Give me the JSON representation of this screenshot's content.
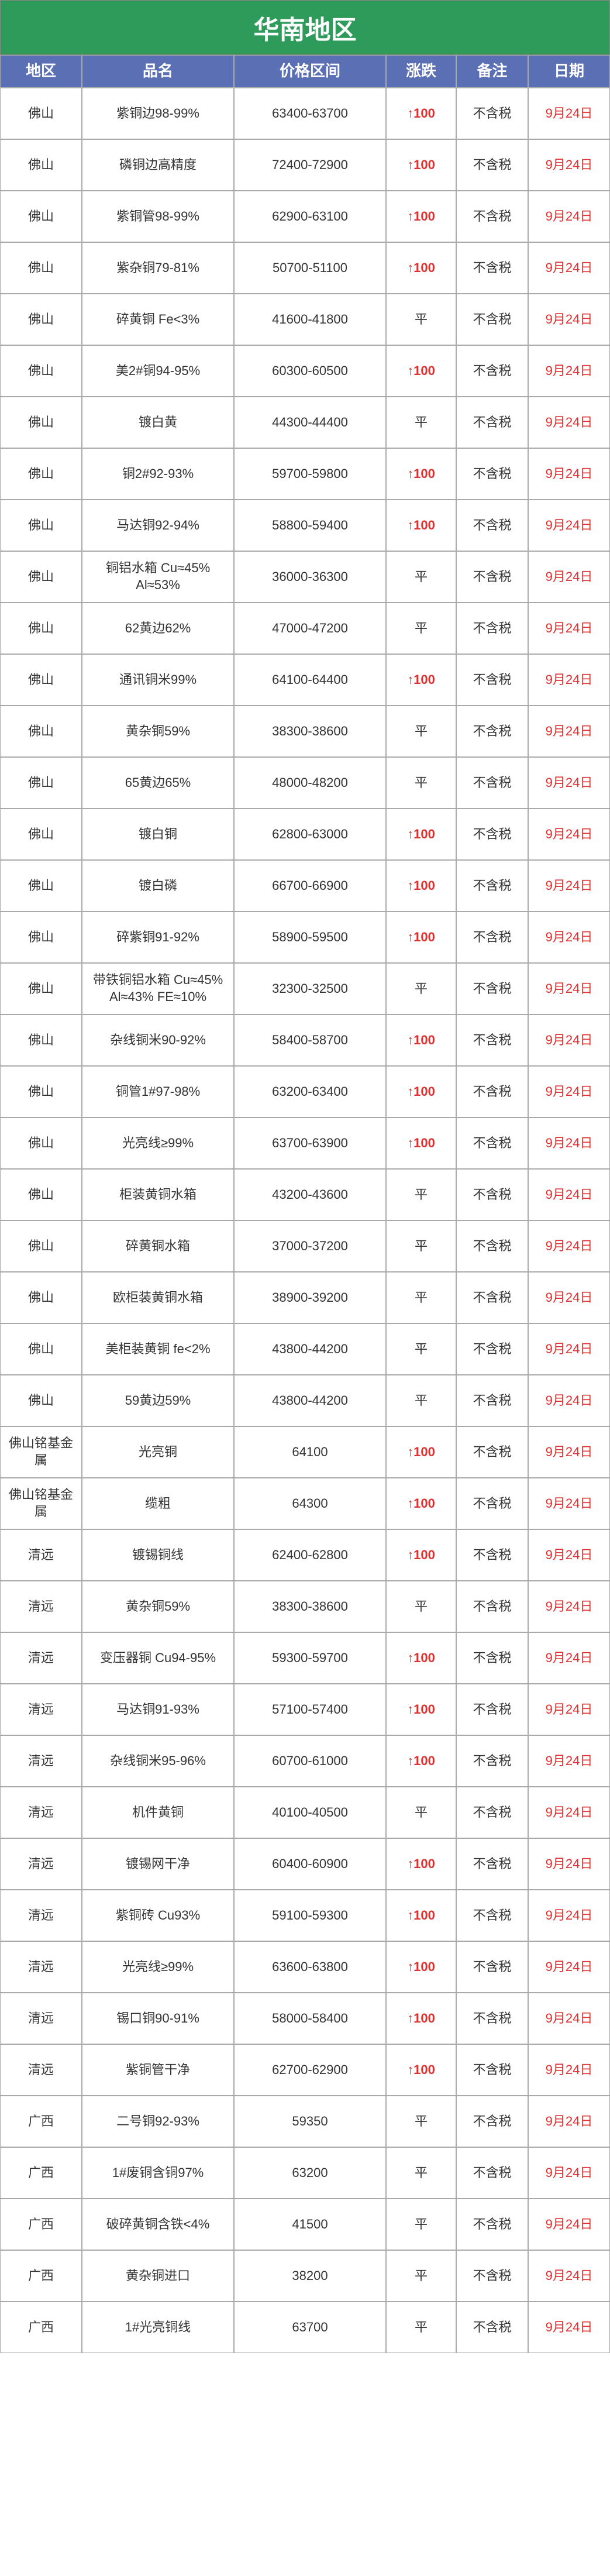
{
  "title": "华南地区",
  "columns": [
    "地区",
    "品名",
    "价格区间",
    "涨跌",
    "备注",
    "日期"
  ],
  "colors": {
    "title_bg": "#2e9b5a",
    "header_bg": "#5b6fb5",
    "text_white": "#ffffff",
    "border": "#aaaaaa",
    "red": "#e03030",
    "normal": "#333333"
  },
  "rows": [
    {
      "region": "佛山",
      "product": "紫铜边98-99%",
      "price": "63400-63700",
      "change": "↑100",
      "change_type": "up",
      "note": "不含税",
      "date": "9月24日"
    },
    {
      "region": "佛山",
      "product": "磷铜边高精度",
      "price": "72400-72900",
      "change": "↑100",
      "change_type": "up",
      "note": "不含税",
      "date": "9月24日"
    },
    {
      "region": "佛山",
      "product": "紫铜管98-99%",
      "price": "62900-63100",
      "change": "↑100",
      "change_type": "up",
      "note": "不含税",
      "date": "9月24日"
    },
    {
      "region": "佛山",
      "product": "紫杂铜79-81%",
      "price": "50700-51100",
      "change": "↑100",
      "change_type": "up",
      "note": "不含税",
      "date": "9月24日"
    },
    {
      "region": "佛山",
      "product": "碎黄铜 Fe<3%",
      "price": "41600-41800",
      "change": "平",
      "change_type": "flat",
      "note": "不含税",
      "date": "9月24日"
    },
    {
      "region": "佛山",
      "product": "美2#铜94-95%",
      "price": "60300-60500",
      "change": "↑100",
      "change_type": "up",
      "note": "不含税",
      "date": "9月24日"
    },
    {
      "region": "佛山",
      "product": "镀白黄",
      "price": "44300-44400",
      "change": "平",
      "change_type": "flat",
      "note": "不含税",
      "date": "9月24日"
    },
    {
      "region": "佛山",
      "product": "铜2#92-93%",
      "price": "59700-59800",
      "change": "↑100",
      "change_type": "up",
      "note": "不含税",
      "date": "9月24日"
    },
    {
      "region": "佛山",
      "product": "马达铜92-94%",
      "price": "58800-59400",
      "change": "↑100",
      "change_type": "up",
      "note": "不含税",
      "date": "9月24日"
    },
    {
      "region": "佛山",
      "product": "铜铝水箱 Cu≈45% Al≈53%",
      "price": "36000-36300",
      "change": "平",
      "change_type": "flat",
      "note": "不含税",
      "date": "9月24日"
    },
    {
      "region": "佛山",
      "product": "62黄边62%",
      "price": "47000-47200",
      "change": "平",
      "change_type": "flat",
      "note": "不含税",
      "date": "9月24日"
    },
    {
      "region": "佛山",
      "product": "通讯铜米99%",
      "price": "64100-64400",
      "change": "↑100",
      "change_type": "up",
      "note": "不含税",
      "date": "9月24日"
    },
    {
      "region": "佛山",
      "product": "黄杂铜59%",
      "price": "38300-38600",
      "change": "平",
      "change_type": "flat",
      "note": "不含税",
      "date": "9月24日"
    },
    {
      "region": "佛山",
      "product": "65黄边65%",
      "price": "48000-48200",
      "change": "平",
      "change_type": "flat",
      "note": "不含税",
      "date": "9月24日"
    },
    {
      "region": "佛山",
      "product": "镀白铜",
      "price": "62800-63000",
      "change": "↑100",
      "change_type": "up",
      "note": "不含税",
      "date": "9月24日"
    },
    {
      "region": "佛山",
      "product": "镀白磷",
      "price": "66700-66900",
      "change": "↑100",
      "change_type": "up",
      "note": "不含税",
      "date": "9月24日"
    },
    {
      "region": "佛山",
      "product": "碎紫铜91-92%",
      "price": "58900-59500",
      "change": "↑100",
      "change_type": "up",
      "note": "不含税",
      "date": "9月24日"
    },
    {
      "region": "佛山",
      "product": "带铁铜铝水箱 Cu≈45% Al≈43% FE≈10%",
      "price": "32300-32500",
      "change": "平",
      "change_type": "flat",
      "note": "不含税",
      "date": "9月24日"
    },
    {
      "region": "佛山",
      "product": "杂线铜米90-92%",
      "price": "58400-58700",
      "change": "↑100",
      "change_type": "up",
      "note": "不含税",
      "date": "9月24日"
    },
    {
      "region": "佛山",
      "product": "铜管1#97-98%",
      "price": "63200-63400",
      "change": "↑100",
      "change_type": "up",
      "note": "不含税",
      "date": "9月24日"
    },
    {
      "region": "佛山",
      "product": "光亮线≥99%",
      "price": "63700-63900",
      "change": "↑100",
      "change_type": "up",
      "note": "不含税",
      "date": "9月24日"
    },
    {
      "region": "佛山",
      "product": "柜装黄铜水箱",
      "price": "43200-43600",
      "change": "平",
      "change_type": "flat",
      "note": "不含税",
      "date": "9月24日"
    },
    {
      "region": "佛山",
      "product": "碎黄铜水箱",
      "price": "37000-37200",
      "change": "平",
      "change_type": "flat",
      "note": "不含税",
      "date": "9月24日"
    },
    {
      "region": "佛山",
      "product": "欧柜装黄铜水箱",
      "price": "38900-39200",
      "change": "平",
      "change_type": "flat",
      "note": "不含税",
      "date": "9月24日"
    },
    {
      "region": "佛山",
      "product": "美柜装黄铜 fe<2%",
      "price": "43800-44200",
      "change": "平",
      "change_type": "flat",
      "note": "不含税",
      "date": "9月24日"
    },
    {
      "region": "佛山",
      "product": "59黄边59%",
      "price": "43800-44200",
      "change": "平",
      "change_type": "flat",
      "note": "不含税",
      "date": "9月24日"
    },
    {
      "region": "佛山铭基金属",
      "product": "光亮铜",
      "price": "64100",
      "change": "↑100",
      "change_type": "up",
      "note": "不含税",
      "date": "9月24日"
    },
    {
      "region": "佛山铭基金属",
      "product": "缆粗",
      "price": "64300",
      "change": "↑100",
      "change_type": "up",
      "note": "不含税",
      "date": "9月24日"
    },
    {
      "region": "清远",
      "product": "镀锡铜线",
      "price": "62400-62800",
      "change": "↑100",
      "change_type": "up",
      "note": "不含税",
      "date": "9月24日"
    },
    {
      "region": "清远",
      "product": "黄杂铜59%",
      "price": "38300-38600",
      "change": "平",
      "change_type": "flat",
      "note": "不含税",
      "date": "9月24日"
    },
    {
      "region": "清远",
      "product": "变压器铜 Cu94-95%",
      "price": "59300-59700",
      "change": "↑100",
      "change_type": "up",
      "note": "不含税",
      "date": "9月24日"
    },
    {
      "region": "清远",
      "product": "马达铜91-93%",
      "price": "57100-57400",
      "change": "↑100",
      "change_type": "up",
      "note": "不含税",
      "date": "9月24日"
    },
    {
      "region": "清远",
      "product": "杂线铜米95-96%",
      "price": "60700-61000",
      "change": "↑100",
      "change_type": "up",
      "note": "不含税",
      "date": "9月24日"
    },
    {
      "region": "清远",
      "product": "机件黄铜",
      "price": "40100-40500",
      "change": "平",
      "change_type": "flat",
      "note": "不含税",
      "date": "9月24日"
    },
    {
      "region": "清远",
      "product": "镀锡网干净",
      "price": "60400-60900",
      "change": "↑100",
      "change_type": "up",
      "note": "不含税",
      "date": "9月24日"
    },
    {
      "region": "清远",
      "product": "紫铜砖 Cu93%",
      "price": "59100-59300",
      "change": "↑100",
      "change_type": "up",
      "note": "不含税",
      "date": "9月24日"
    },
    {
      "region": "清远",
      "product": "光亮线≥99%",
      "price": "63600-63800",
      "change": "↑100",
      "change_type": "up",
      "note": "不含税",
      "date": "9月24日"
    },
    {
      "region": "清远",
      "product": "锡口铜90-91%",
      "price": "58000-58400",
      "change": "↑100",
      "change_type": "up",
      "note": "不含税",
      "date": "9月24日"
    },
    {
      "region": "清远",
      "product": "紫铜管干净",
      "price": "62700-62900",
      "change": "↑100",
      "change_type": "up",
      "note": "不含税",
      "date": "9月24日"
    },
    {
      "region": "广西",
      "product": "二号铜92-93%",
      "price": "59350",
      "change": "平",
      "change_type": "flat",
      "note": "不含税",
      "date": "9月24日"
    },
    {
      "region": "广西",
      "product": "1#废铜含铜97%",
      "price": "63200",
      "change": "平",
      "change_type": "flat",
      "note": "不含税",
      "date": "9月24日"
    },
    {
      "region": "广西",
      "product": "破碎黄铜含铁<4%",
      "price": "41500",
      "change": "平",
      "change_type": "flat",
      "note": "不含税",
      "date": "9月24日"
    },
    {
      "region": "广西",
      "product": "黄杂铜进口",
      "price": "38200",
      "change": "平",
      "change_type": "flat",
      "note": "不含税",
      "date": "9月24日"
    },
    {
      "region": "广西",
      "product": "1#光亮铜线",
      "price": "63700",
      "change": "平",
      "change_type": "flat",
      "note": "不含税",
      "date": "9月24日"
    }
  ]
}
